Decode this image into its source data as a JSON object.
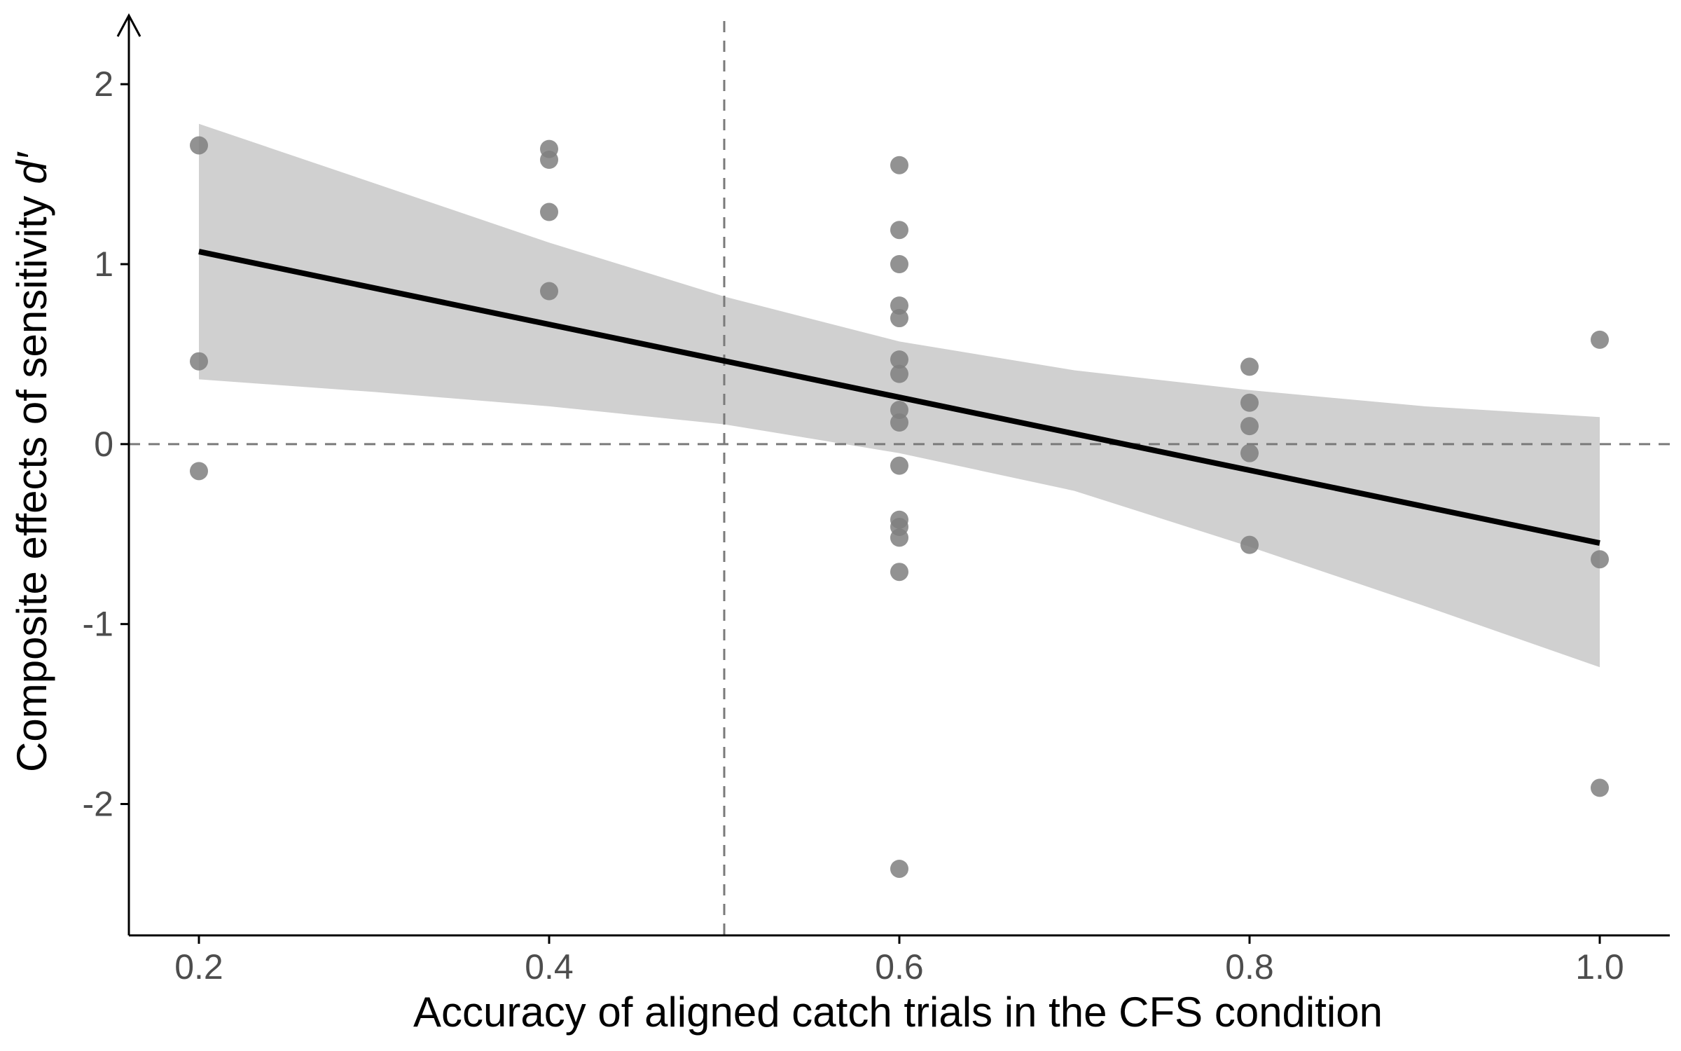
{
  "chart_data": {
    "type": "scatter",
    "xlabel": "Accuracy of aligned catch trials in the CFS condition",
    "ylabel_main": "Composite effects of sensitivity ",
    "ylabel_italic": "d′",
    "xlim": [
      0.16,
      1.04
    ],
    "ylim": [
      -2.73,
      2.39
    ],
    "x_ticks": [
      0.2,
      0.4,
      0.6,
      0.8,
      1.0
    ],
    "x_tick_labels": [
      "0.2",
      "0.4",
      "0.6",
      "0.8",
      "1.0"
    ],
    "y_ticks": [
      2,
      1,
      0,
      -1,
      -2
    ],
    "y_tick_labels": [
      "2",
      "1",
      "0",
      "-1",
      "-2"
    ],
    "reference_lines": {
      "vertical_x": 0.5,
      "horizontal_y": 0
    },
    "points": [
      {
        "x": 0.2,
        "y": 1.66
      },
      {
        "x": 0.2,
        "y": 0.46
      },
      {
        "x": 0.2,
        "y": -0.15
      },
      {
        "x": 0.4,
        "y": 1.64
      },
      {
        "x": 0.4,
        "y": 1.58
      },
      {
        "x": 0.4,
        "y": 1.29
      },
      {
        "x": 0.4,
        "y": 0.85
      },
      {
        "x": 0.6,
        "y": 1.55
      },
      {
        "x": 0.6,
        "y": 1.19
      },
      {
        "x": 0.6,
        "y": 1.0
      },
      {
        "x": 0.6,
        "y": 0.77
      },
      {
        "x": 0.6,
        "y": 0.7
      },
      {
        "x": 0.6,
        "y": 0.47
      },
      {
        "x": 0.6,
        "y": 0.39
      },
      {
        "x": 0.6,
        "y": 0.19
      },
      {
        "x": 0.6,
        "y": 0.12
      },
      {
        "x": 0.6,
        "y": -0.12
      },
      {
        "x": 0.6,
        "y": -0.42
      },
      {
        "x": 0.6,
        "y": -0.46
      },
      {
        "x": 0.6,
        "y": -0.52
      },
      {
        "x": 0.6,
        "y": -0.71
      },
      {
        "x": 0.6,
        "y": -2.36
      },
      {
        "x": 0.8,
        "y": 0.43
      },
      {
        "x": 0.8,
        "y": 0.23
      },
      {
        "x": 0.8,
        "y": 0.1
      },
      {
        "x": 0.8,
        "y": -0.05
      },
      {
        "x": 0.8,
        "y": -0.56
      },
      {
        "x": 1.0,
        "y": 0.58
      },
      {
        "x": 1.0,
        "y": -0.64
      },
      {
        "x": 1.0,
        "y": -1.91
      }
    ],
    "fit_line": {
      "x": [
        0.2,
        1.0
      ],
      "y": [
        1.07,
        -0.55
      ]
    },
    "confidence_band": {
      "x": [
        0.2,
        0.3,
        0.4,
        0.5,
        0.6,
        0.7,
        0.8,
        0.9,
        1.0
      ],
      "upper": [
        1.78,
        1.45,
        1.12,
        0.82,
        0.57,
        0.41,
        0.3,
        0.21,
        0.15
      ],
      "lower": [
        0.36,
        0.29,
        0.21,
        0.11,
        -0.05,
        -0.26,
        -0.57,
        -0.9,
        -1.24
      ]
    },
    "colors": {
      "points": "#7f7f7f",
      "fit_line": "#000000",
      "band": "#d0d0d0",
      "reference": "#7a7a7a",
      "axis": "#000000"
    }
  }
}
